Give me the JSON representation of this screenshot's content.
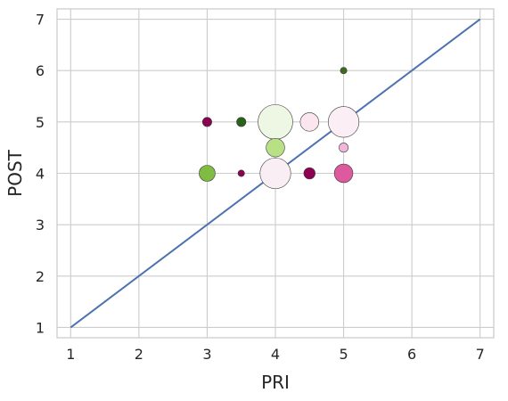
{
  "chart_data": {
    "type": "scatter",
    "title": "",
    "xlabel": "PRI",
    "ylabel": "POST",
    "xlim": [
      0.8,
      7.2
    ],
    "ylim": [
      0.8,
      7.2
    ],
    "xticks": [
      1,
      2,
      3,
      4,
      5,
      6,
      7
    ],
    "yticks": [
      1,
      2,
      3,
      4,
      5,
      6,
      7
    ],
    "grid": true,
    "reference_line": {
      "x": [
        1,
        7
      ],
      "y": [
        1,
        7
      ],
      "color": "#4c72b0"
    },
    "points": [
      {
        "x": 3.0,
        "y": 5.0,
        "size": 1,
        "color": "#8e0152"
      },
      {
        "x": 3.5,
        "y": 5.0,
        "size": 1,
        "color": "#276419"
      },
      {
        "x": 4.0,
        "y": 5.0,
        "size": 14,
        "color": "#eef6e4"
      },
      {
        "x": 4.5,
        "y": 5.0,
        "size": 4,
        "color": "#fbe6f0"
      },
      {
        "x": 5.0,
        "y": 5.0,
        "size": 11,
        "color": "#fbeef4"
      },
      {
        "x": 5.0,
        "y": 6.0,
        "size": 0.5,
        "color": "#3f6a1e"
      },
      {
        "x": 4.0,
        "y": 4.5,
        "size": 4,
        "color": "#b8e186"
      },
      {
        "x": 5.0,
        "y": 4.5,
        "size": 1,
        "color": "#f1b6da"
      },
      {
        "x": 3.0,
        "y": 4.0,
        "size": 3,
        "color": "#7fbc41"
      },
      {
        "x": 3.5,
        "y": 4.0,
        "size": 0.5,
        "color": "#8e0152"
      },
      {
        "x": 4.0,
        "y": 4.0,
        "size": 11,
        "color": "#f8eef4"
      },
      {
        "x": 4.5,
        "y": 4.0,
        "size": 1.5,
        "color": "#8e0152"
      },
      {
        "x": 5.0,
        "y": 4.0,
        "size": 4,
        "color": "#de5a9e"
      }
    ]
  }
}
